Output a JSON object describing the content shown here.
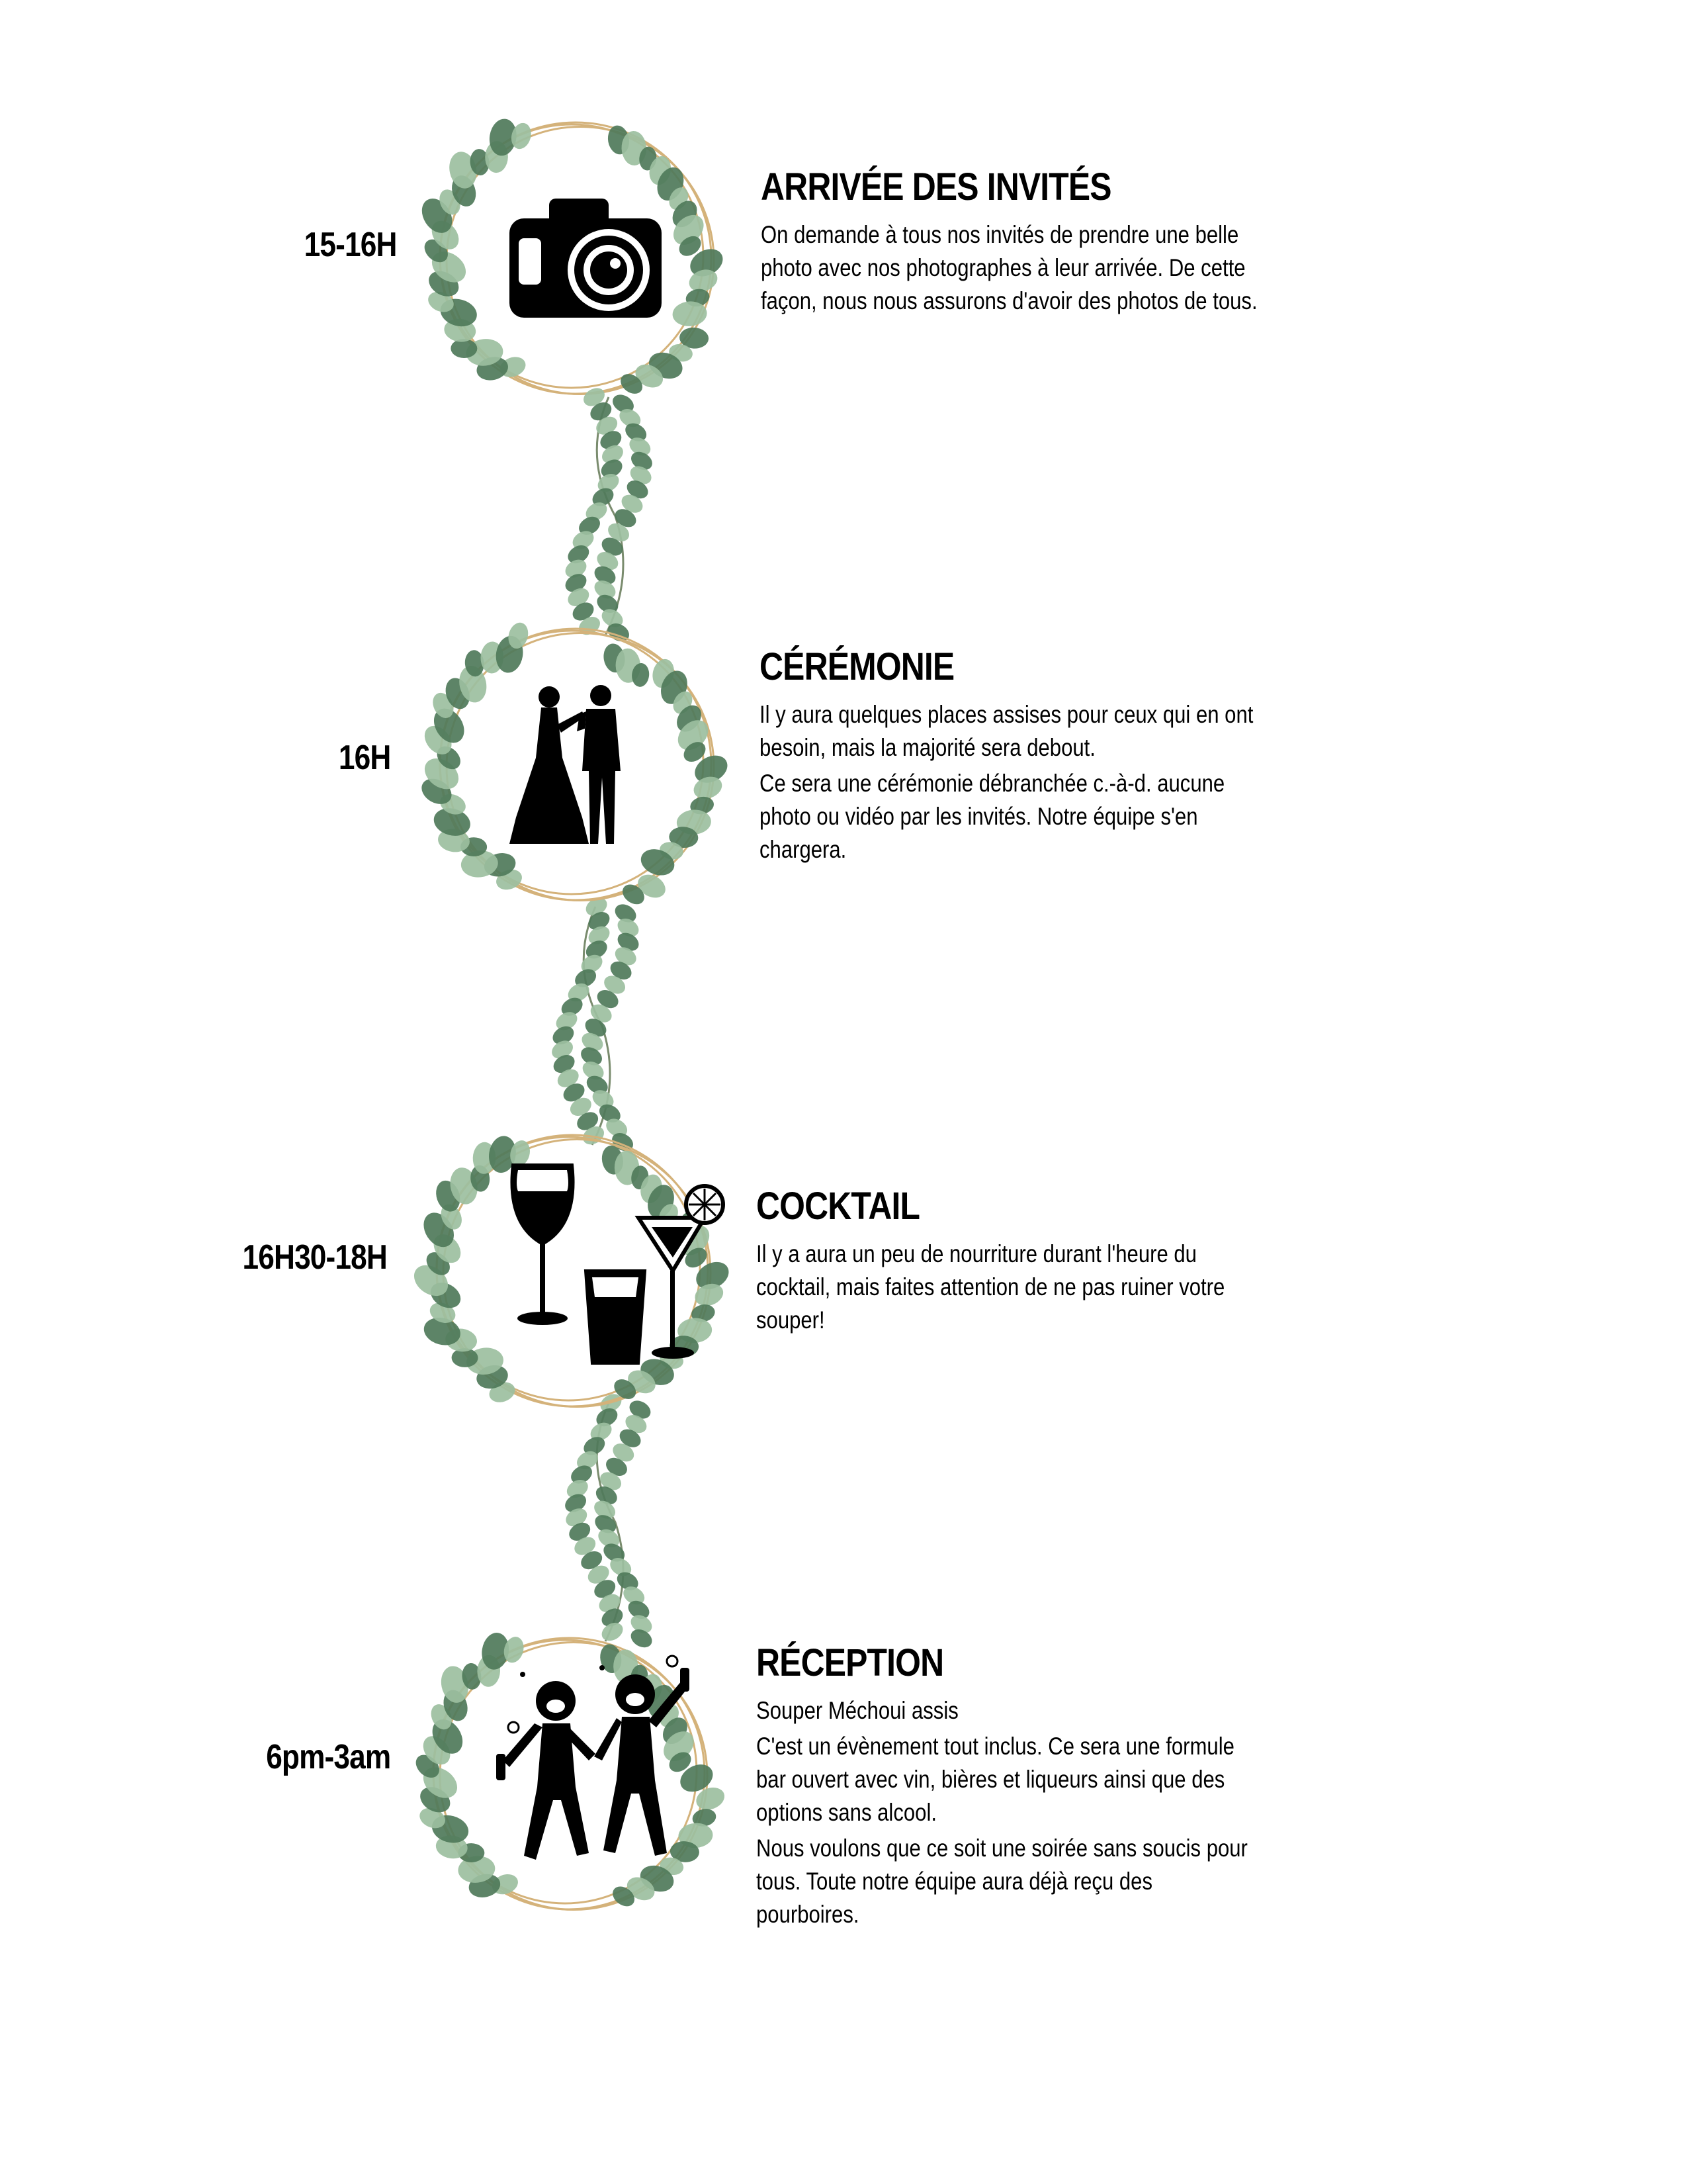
{
  "events": [
    {
      "time": "15-16H",
      "title": "ARRIVÉE DES INVITÉS",
      "icon": "camera-icon",
      "paragraphs": [
        "On demande à tous nos invités de prendre une belle photo avec nos photographes à leur arrivée. De cette façon, nous nous assurons d'avoir des photos de tous."
      ]
    },
    {
      "time": "16H",
      "title": "CÉRÉMONIE",
      "icon": "couple-icon",
      "paragraphs": [
        "Il y aura quelques places assises pour ceux qui en ont besoin, mais la majorité sera debout.",
        "Ce sera une cérémonie débranchée c.-à-d. aucune photo ou vidéo par les invités. Notre équipe s'en chargera."
      ]
    },
    {
      "time": "16H30-18H",
      "title": "COCKTAIL",
      "icon": "cocktail-glasses-icon",
      "paragraphs": [
        "Il y a aura un peu de nourriture durant l'heure du cocktail, mais faites attention de ne pas ruiner votre souper!"
      ]
    },
    {
      "time": "6pm-3am",
      "title": "RÉCEPTION",
      "icon": "party-people-icon",
      "paragraphs": [
        "Souper Méchoui assis",
        "C'est un évènement tout inclus. Ce sera une formule bar ouvert avec vin, bières et liqueurs ainsi que des options sans alcool.",
        "Nous voulons que ce soit une soirée sans soucis pour tous. Toute notre équipe aura déjà reçu des pourboires."
      ]
    }
  ],
  "colors": {
    "leaf_dark": "#4f7a5a",
    "leaf_light": "#9cbf9f",
    "ring_gold": "#d4b27a",
    "text": "#000000"
  }
}
